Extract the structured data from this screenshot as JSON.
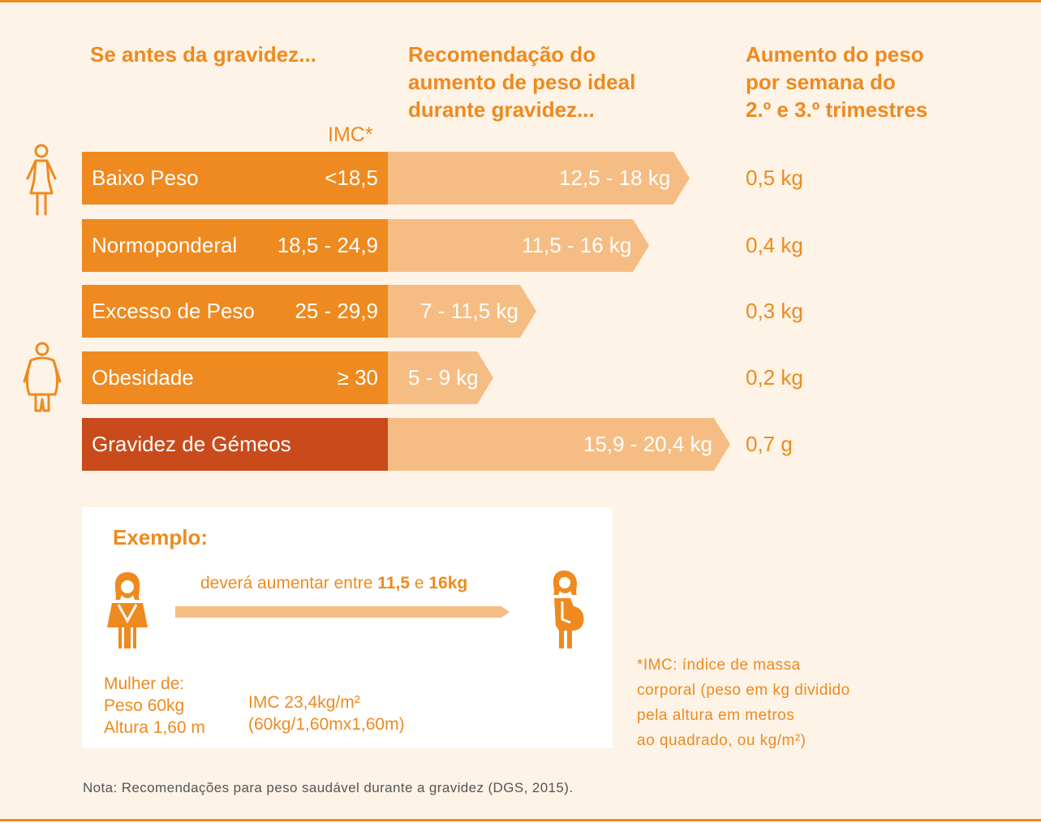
{
  "headers": {
    "before": "Se antes da gravidez...",
    "recommendation": "Recomendação do\naumento de peso ideal\ndurante gravidez...",
    "weekly": "Aumento do peso\npor semana do\n2.º e 3.º trimestres"
  },
  "imc_label": "IMC*",
  "rows": [
    {
      "category": "Baixo Peso",
      "imc": "<18,5",
      "recommendation": "12,5 - 18 kg",
      "weekly": "0,5 kg"
    },
    {
      "category": "Normoponderal",
      "imc": "18,5 - 24,9",
      "recommendation": "11,5 - 16 kg",
      "weekly": "0,4 kg"
    },
    {
      "category": "Excesso de Peso",
      "imc": "25 - 29,9",
      "recommendation": "7 - 11,5 kg",
      "weekly": "0,3 kg"
    },
    {
      "category": "Obesidade",
      "imc": "≥ 30",
      "recommendation": "5 - 9 kg",
      "weekly": "0,2 kg"
    },
    {
      "category": "Gravidez de Gémeos",
      "imc": "",
      "recommendation": "15,9 - 20,4 kg",
      "weekly": "0,7 g"
    }
  ],
  "example": {
    "title": "Exemplo:",
    "arrow_prefix": "deverá aumentar entre ",
    "arrow_min": "11,5",
    "arrow_mid": " e ",
    "arrow_max": "16kg",
    "woman_line1": "Mulher de:",
    "woman_line2": "Peso 60kg",
    "woman_line3": "Altura 1,60 m",
    "imc_line1": "IMC 23,4kg/m²",
    "imc_line2": "(60kg/1,60mx1,60m)"
  },
  "footnote": {
    "line1": "*IMC: índice de massa",
    "line2": "corporal (peso em kg dividido",
    "line3": "pela altura em metros",
    "line4": "ao quadrado, ou kg/m²)"
  },
  "source_note": "Nota: Recomendações para peso saudável durante a gravidez (DGS, 2015).",
  "icons": [
    "slim-woman-icon",
    "heavy-woman-icon",
    "woman-icon",
    "pregnant-woman-icon"
  ],
  "colors": {
    "accent": "#ee8a1f",
    "light_accent": "#f5bd83",
    "twins": "#c94a1b",
    "background": "#fdf3e7"
  }
}
